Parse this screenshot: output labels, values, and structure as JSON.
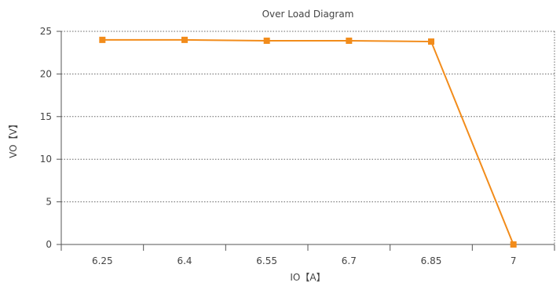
{
  "chart_data": {
    "type": "line",
    "title": "Over Load Diagram",
    "xlabel": "IO【A】",
    "ylabel": "VO【V】",
    "categories": [
      "6.25",
      "6.4",
      "6.55",
      "6.7",
      "6.85",
      "7"
    ],
    "series": [
      {
        "values": [
          24.0,
          24.0,
          23.9,
          23.9,
          23.8,
          0
        ]
      }
    ],
    "yticks": [
      "0",
      "5",
      "10",
      "15",
      "20",
      "25"
    ],
    "ylim": [
      0,
      25
    ],
    "grid": "horizontal dotted",
    "legend": "none",
    "colors": {
      "series": "#F28C1B",
      "grid": "#666666",
      "axis": "#555555"
    }
  }
}
